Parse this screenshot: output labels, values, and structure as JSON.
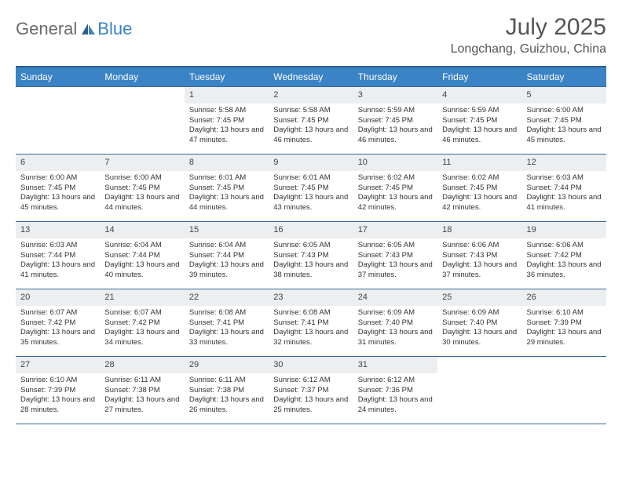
{
  "logo": {
    "part1": "General",
    "part2": "Blue"
  },
  "title": "July 2025",
  "location": "Longchang, Guizhou, China",
  "colors": {
    "header_bg": "#3a83c5",
    "header_border": "#2e5f8f",
    "rule": "#3a6a9a",
    "daynum_bg": "#eceef0",
    "text": "#333333",
    "logo_gray": "#6a6a6a",
    "logo_blue": "#3a83c5"
  },
  "weekdays": [
    "Sunday",
    "Monday",
    "Tuesday",
    "Wednesday",
    "Thursday",
    "Friday",
    "Saturday"
  ],
  "weeks": [
    [
      null,
      null,
      {
        "day": "1",
        "sunrise": "Sunrise: 5:58 AM",
        "sunset": "Sunset: 7:45 PM",
        "daylight": "Daylight: 13 hours and 47 minutes."
      },
      {
        "day": "2",
        "sunrise": "Sunrise: 5:58 AM",
        "sunset": "Sunset: 7:45 PM",
        "daylight": "Daylight: 13 hours and 46 minutes."
      },
      {
        "day": "3",
        "sunrise": "Sunrise: 5:59 AM",
        "sunset": "Sunset: 7:45 PM",
        "daylight": "Daylight: 13 hours and 46 minutes."
      },
      {
        "day": "4",
        "sunrise": "Sunrise: 5:59 AM",
        "sunset": "Sunset: 7:45 PM",
        "daylight": "Daylight: 13 hours and 46 minutes."
      },
      {
        "day": "5",
        "sunrise": "Sunrise: 6:00 AM",
        "sunset": "Sunset: 7:45 PM",
        "daylight": "Daylight: 13 hours and 45 minutes."
      }
    ],
    [
      {
        "day": "6",
        "sunrise": "Sunrise: 6:00 AM",
        "sunset": "Sunset: 7:45 PM",
        "daylight": "Daylight: 13 hours and 45 minutes."
      },
      {
        "day": "7",
        "sunrise": "Sunrise: 6:00 AM",
        "sunset": "Sunset: 7:45 PM",
        "daylight": "Daylight: 13 hours and 44 minutes."
      },
      {
        "day": "8",
        "sunrise": "Sunrise: 6:01 AM",
        "sunset": "Sunset: 7:45 PM",
        "daylight": "Daylight: 13 hours and 44 minutes."
      },
      {
        "day": "9",
        "sunrise": "Sunrise: 6:01 AM",
        "sunset": "Sunset: 7:45 PM",
        "daylight": "Daylight: 13 hours and 43 minutes."
      },
      {
        "day": "10",
        "sunrise": "Sunrise: 6:02 AM",
        "sunset": "Sunset: 7:45 PM",
        "daylight": "Daylight: 13 hours and 42 minutes."
      },
      {
        "day": "11",
        "sunrise": "Sunrise: 6:02 AM",
        "sunset": "Sunset: 7:45 PM",
        "daylight": "Daylight: 13 hours and 42 minutes."
      },
      {
        "day": "12",
        "sunrise": "Sunrise: 6:03 AM",
        "sunset": "Sunset: 7:44 PM",
        "daylight": "Daylight: 13 hours and 41 minutes."
      }
    ],
    [
      {
        "day": "13",
        "sunrise": "Sunrise: 6:03 AM",
        "sunset": "Sunset: 7:44 PM",
        "daylight": "Daylight: 13 hours and 41 minutes."
      },
      {
        "day": "14",
        "sunrise": "Sunrise: 6:04 AM",
        "sunset": "Sunset: 7:44 PM",
        "daylight": "Daylight: 13 hours and 40 minutes."
      },
      {
        "day": "15",
        "sunrise": "Sunrise: 6:04 AM",
        "sunset": "Sunset: 7:44 PM",
        "daylight": "Daylight: 13 hours and 39 minutes."
      },
      {
        "day": "16",
        "sunrise": "Sunrise: 6:05 AM",
        "sunset": "Sunset: 7:43 PM",
        "daylight": "Daylight: 13 hours and 38 minutes."
      },
      {
        "day": "17",
        "sunrise": "Sunrise: 6:05 AM",
        "sunset": "Sunset: 7:43 PM",
        "daylight": "Daylight: 13 hours and 37 minutes."
      },
      {
        "day": "18",
        "sunrise": "Sunrise: 6:06 AM",
        "sunset": "Sunset: 7:43 PM",
        "daylight": "Daylight: 13 hours and 37 minutes."
      },
      {
        "day": "19",
        "sunrise": "Sunrise: 6:06 AM",
        "sunset": "Sunset: 7:42 PM",
        "daylight": "Daylight: 13 hours and 36 minutes."
      }
    ],
    [
      {
        "day": "20",
        "sunrise": "Sunrise: 6:07 AM",
        "sunset": "Sunset: 7:42 PM",
        "daylight": "Daylight: 13 hours and 35 minutes."
      },
      {
        "day": "21",
        "sunrise": "Sunrise: 6:07 AM",
        "sunset": "Sunset: 7:42 PM",
        "daylight": "Daylight: 13 hours and 34 minutes."
      },
      {
        "day": "22",
        "sunrise": "Sunrise: 6:08 AM",
        "sunset": "Sunset: 7:41 PM",
        "daylight": "Daylight: 13 hours and 33 minutes."
      },
      {
        "day": "23",
        "sunrise": "Sunrise: 6:08 AM",
        "sunset": "Sunset: 7:41 PM",
        "daylight": "Daylight: 13 hours and 32 minutes."
      },
      {
        "day": "24",
        "sunrise": "Sunrise: 6:09 AM",
        "sunset": "Sunset: 7:40 PM",
        "daylight": "Daylight: 13 hours and 31 minutes."
      },
      {
        "day": "25",
        "sunrise": "Sunrise: 6:09 AM",
        "sunset": "Sunset: 7:40 PM",
        "daylight": "Daylight: 13 hours and 30 minutes."
      },
      {
        "day": "26",
        "sunrise": "Sunrise: 6:10 AM",
        "sunset": "Sunset: 7:39 PM",
        "daylight": "Daylight: 13 hours and 29 minutes."
      }
    ],
    [
      {
        "day": "27",
        "sunrise": "Sunrise: 6:10 AM",
        "sunset": "Sunset: 7:39 PM",
        "daylight": "Daylight: 13 hours and 28 minutes."
      },
      {
        "day": "28",
        "sunrise": "Sunrise: 6:11 AM",
        "sunset": "Sunset: 7:38 PM",
        "daylight": "Daylight: 13 hours and 27 minutes."
      },
      {
        "day": "29",
        "sunrise": "Sunrise: 6:11 AM",
        "sunset": "Sunset: 7:38 PM",
        "daylight": "Daylight: 13 hours and 26 minutes."
      },
      {
        "day": "30",
        "sunrise": "Sunrise: 6:12 AM",
        "sunset": "Sunset: 7:37 PM",
        "daylight": "Daylight: 13 hours and 25 minutes."
      },
      {
        "day": "31",
        "sunrise": "Sunrise: 6:12 AM",
        "sunset": "Sunset: 7:36 PM",
        "daylight": "Daylight: 13 hours and 24 minutes."
      },
      null,
      null
    ]
  ]
}
